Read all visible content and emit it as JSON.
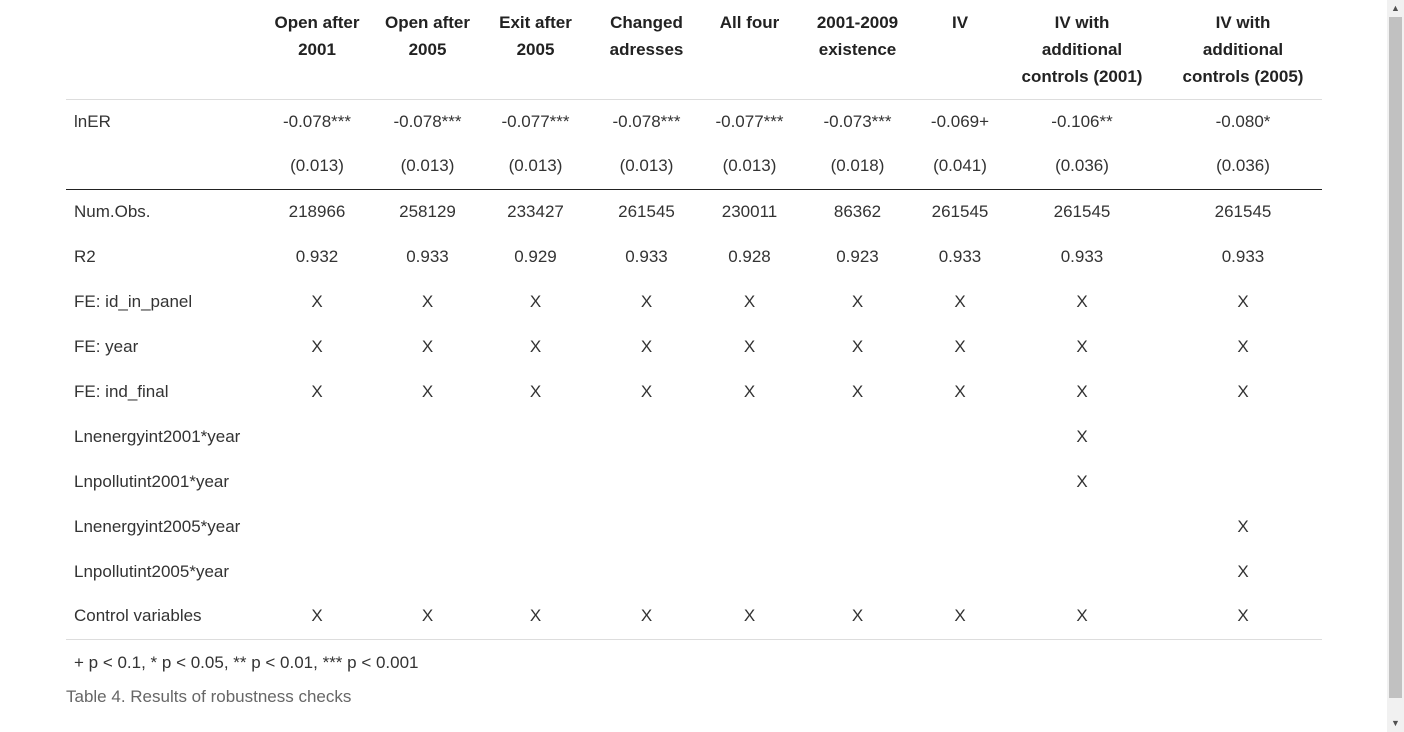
{
  "table": {
    "headers": [
      "",
      [
        "Open after",
        "2001"
      ],
      [
        "Open after",
        "2005"
      ],
      [
        "Exit after",
        "2005"
      ],
      [
        "Changed",
        "adresses"
      ],
      [
        "All four"
      ],
      [
        "2001-2009",
        "existence"
      ],
      [
        "IV"
      ],
      [
        "IV with",
        "additional",
        "controls (2001)"
      ],
      [
        "IV with",
        "additional",
        "controls (2005)"
      ]
    ],
    "rows": [
      {
        "label": "lnER",
        "cells": [
          "-0.078***",
          "-0.078***",
          "-0.077***",
          "-0.078***",
          "-0.077***",
          "-0.073***",
          "-0.069+",
          "-0.106**",
          "-0.080*"
        ]
      },
      {
        "label": "",
        "cells": [
          "(0.013)",
          "(0.013)",
          "(0.013)",
          "(0.013)",
          "(0.013)",
          "(0.018)",
          "(0.041)",
          "(0.036)",
          "(0.036)"
        ]
      },
      {
        "label": "Num.Obs.",
        "cells": [
          "218966",
          "258129",
          "233427",
          "261545",
          "230011",
          "86362",
          "261545",
          "261545",
          "261545"
        ]
      },
      {
        "label": "R2",
        "cells": [
          "0.932",
          "0.933",
          "0.929",
          "0.933",
          "0.928",
          "0.923",
          "0.933",
          "0.933",
          "0.933"
        ]
      },
      {
        "label": "FE: id_in_panel",
        "cells": [
          "X",
          "X",
          "X",
          "X",
          "X",
          "X",
          "X",
          "X",
          "X"
        ]
      },
      {
        "label": "FE: year",
        "cells": [
          "X",
          "X",
          "X",
          "X",
          "X",
          "X",
          "X",
          "X",
          "X"
        ]
      },
      {
        "label": "FE: ind_final",
        "cells": [
          "X",
          "X",
          "X",
          "X",
          "X",
          "X",
          "X",
          "X",
          "X"
        ]
      },
      {
        "label": "Lnenergyint2001*year",
        "cells": [
          "",
          "",
          "",
          "",
          "",
          "",
          "",
          "X",
          ""
        ]
      },
      {
        "label": "Lnpollutint2001*year",
        "cells": [
          "",
          "",
          "",
          "",
          "",
          "",
          "",
          "X",
          ""
        ]
      },
      {
        "label": "Lnenergyint2005*year",
        "cells": [
          "",
          "",
          "",
          "",
          "",
          "",
          "",
          "",
          "X"
        ]
      },
      {
        "label": "Lnpollutint2005*year",
        "cells": [
          "",
          "",
          "",
          "",
          "",
          "",
          "",
          "",
          "X"
        ]
      },
      {
        "label": "Control variables",
        "cells": [
          "X",
          "X",
          "X",
          "X",
          "X",
          "X",
          "X",
          "X",
          "X"
        ]
      }
    ],
    "notes": "+ p < 0.1, * p < 0.05, ** p < 0.01, *** p < 0.001"
  },
  "caption": "Table 4. Results of robustness checks"
}
